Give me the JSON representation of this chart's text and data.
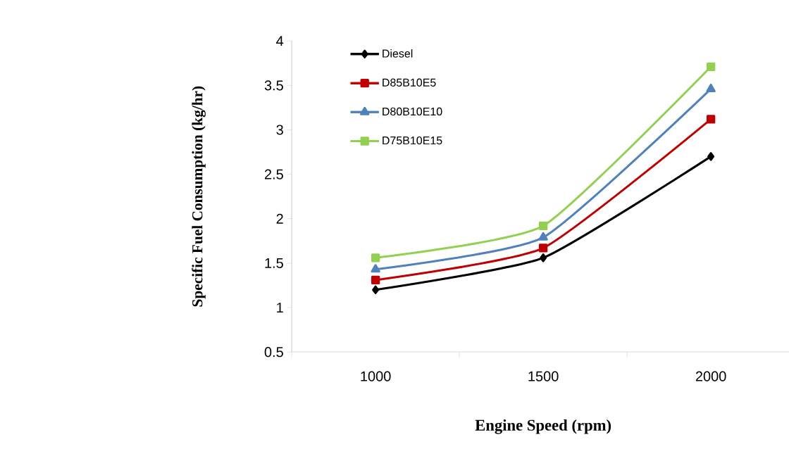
{
  "chart_data": {
    "type": "line",
    "xlabel": "Engine Speed (rpm)",
    "ylabel": "Specific Fuel Consumption (kg/hr)",
    "categories": [
      "1000",
      "1500",
      "2000"
    ],
    "ylim": [
      0.5,
      4
    ],
    "yticks": [
      0.5,
      1,
      1.5,
      2,
      2.5,
      3,
      3.5,
      4
    ],
    "grid": false,
    "legend": "top left",
    "series": [
      {
        "name": "Diesel",
        "color": "#000000",
        "marker": "diamond",
        "values": [
          1.2,
          1.56,
          2.7
        ]
      },
      {
        "name": "D85B10E5",
        "color": "#c00000",
        "marker": "square",
        "values": [
          1.31,
          1.67,
          3.12
        ]
      },
      {
        "name": "D80B10E10",
        "color": "#4f81bd",
        "marker": "triangle",
        "values": [
          1.43,
          1.79,
          3.46
        ]
      },
      {
        "name": "D75B10E15",
        "color": "#92d050",
        "marker": "square",
        "values": [
          1.56,
          1.92,
          3.71
        ]
      }
    ]
  }
}
